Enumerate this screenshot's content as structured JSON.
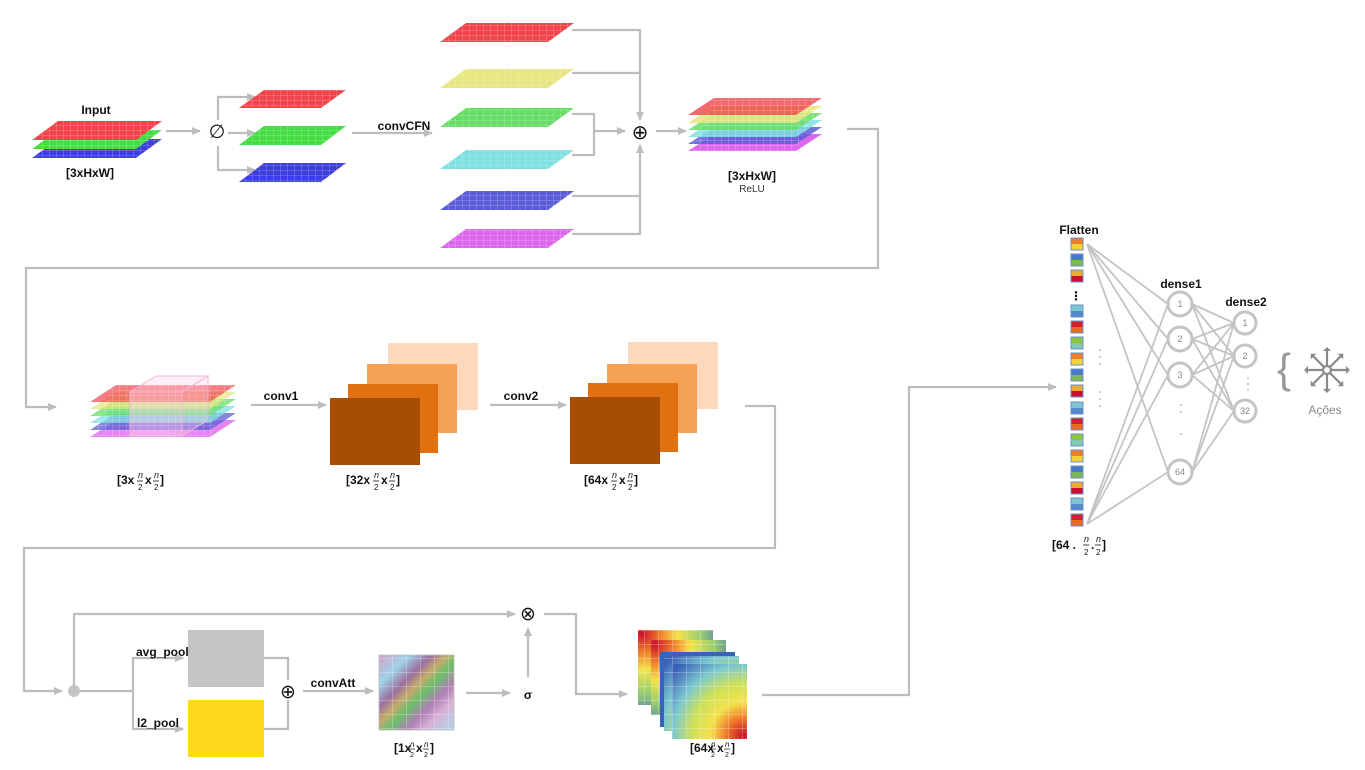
{
  "input": {
    "title": "Input",
    "shape": "[3xHxW]"
  },
  "split_symbol": "∅",
  "conv_cfn": {
    "label": "convCFN"
  },
  "add_symbol": "⊕",
  "relu_block": {
    "shape": "[3xHxW]",
    "activation": "ReLU"
  },
  "conv1": {
    "label": "conv1"
  },
  "conv2": {
    "label": "conv2"
  },
  "shapes": {
    "s3": "[3x",
    "s32": "[32x",
    "s64": "[64x",
    "frac_num": "n",
    "frac_den": "2",
    "times": "x",
    "close": "]"
  },
  "attention": {
    "avg_pool": "avg_pool",
    "l2_pool": "l2_pool",
    "conv_att": "convAtt",
    "att_shape_prefix": "[1x",
    "sigma": "σ",
    "multiply_symbol": "⊗",
    "out_shape_prefix": "[64x"
  },
  "flatten": {
    "title": "Flatten",
    "shape_prefix": "[64 .",
    "dot": ".",
    "close": "]",
    "ellipsis": "⋮"
  },
  "dense1": {
    "title": "dense1",
    "nodes": [
      "1",
      "2",
      "3",
      "64"
    ]
  },
  "dense2": {
    "title": "dense2",
    "nodes": [
      "1",
      "2",
      "32"
    ]
  },
  "actions": {
    "label": "Ações",
    "icon": "direction-arrows-icon"
  },
  "colors": {
    "red": "#f0444a",
    "yellow": "#e6e680",
    "green": "#55dd55",
    "cyan": "#7ee0e0",
    "blue": "#3d3ddd",
    "magenta": "#dd66ee",
    "arrow": "#bdbdbd",
    "orange_dark": "#a84e04",
    "orange_mid": "#e07010",
    "orange_light": "#f8b27a",
    "avg_pool": "#c4c4c4",
    "l2_pool": "#fcd91c"
  }
}
